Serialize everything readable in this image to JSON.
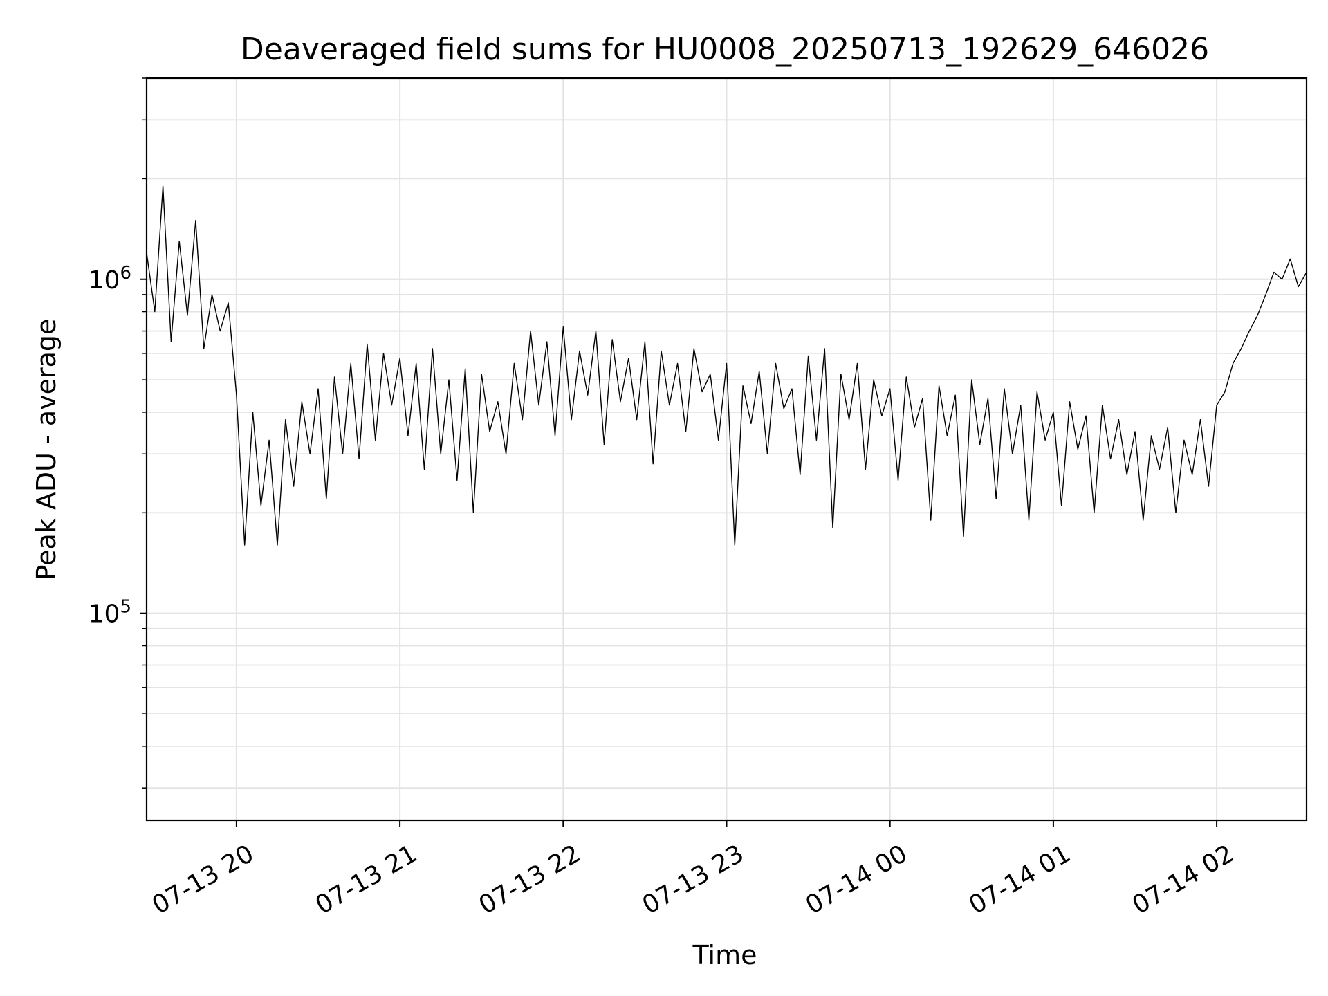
{
  "chart_data": {
    "type": "line",
    "title": "Deaveraged field sums for HU0008_20250713_192629_646026",
    "xlabel": "Time",
    "ylabel": "Peak ADU - average",
    "y_scale": "log",
    "ylim": [
      24000,
      4000000
    ],
    "xlim": [
      "2025-07-13 19:27",
      "2025-07-14 02:33"
    ],
    "grid": true,
    "line_color": "#000000",
    "x_ticks": [
      {
        "value": "2025-07-13 20:00",
        "label": "07-13 20"
      },
      {
        "value": "2025-07-13 21:00",
        "label": "07-13 21"
      },
      {
        "value": "2025-07-13 22:00",
        "label": "07-13 22"
      },
      {
        "value": "2025-07-13 23:00",
        "label": "07-13 23"
      },
      {
        "value": "2025-07-14 00:00",
        "label": "07-14 00"
      },
      {
        "value": "2025-07-14 01:00",
        "label": "07-14 01"
      },
      {
        "value": "2025-07-14 02:00",
        "label": "07-14 02"
      }
    ],
    "y_ticks": [
      {
        "value": 100000,
        "base": "10",
        "exp": "5"
      },
      {
        "value": 1000000,
        "base": "10",
        "exp": "6"
      }
    ],
    "series": [
      {
        "name": "",
        "x": [
          "2025-07-13 19:27",
          "2025-07-13 19:30",
          "2025-07-13 19:33",
          "2025-07-13 19:36",
          "2025-07-13 19:39",
          "2025-07-13 19:42",
          "2025-07-13 19:45",
          "2025-07-13 19:48",
          "2025-07-13 19:51",
          "2025-07-13 19:54",
          "2025-07-13 19:57",
          "2025-07-13 20:00",
          "2025-07-13 20:03",
          "2025-07-13 20:06",
          "2025-07-13 20:09",
          "2025-07-13 20:12",
          "2025-07-13 20:15",
          "2025-07-13 20:18",
          "2025-07-13 20:21",
          "2025-07-13 20:24",
          "2025-07-13 20:27",
          "2025-07-13 20:30",
          "2025-07-13 20:33",
          "2025-07-13 20:36",
          "2025-07-13 20:39",
          "2025-07-13 20:42",
          "2025-07-13 20:45",
          "2025-07-13 20:48",
          "2025-07-13 20:51",
          "2025-07-13 20:54",
          "2025-07-13 20:57",
          "2025-07-13 21:00",
          "2025-07-13 21:03",
          "2025-07-13 21:06",
          "2025-07-13 21:09",
          "2025-07-13 21:12",
          "2025-07-13 21:15",
          "2025-07-13 21:18",
          "2025-07-13 21:21",
          "2025-07-13 21:24",
          "2025-07-13 21:27",
          "2025-07-13 21:30",
          "2025-07-13 21:33",
          "2025-07-13 21:36",
          "2025-07-13 21:39",
          "2025-07-13 21:42",
          "2025-07-13 21:45",
          "2025-07-13 21:48",
          "2025-07-13 21:51",
          "2025-07-13 21:54",
          "2025-07-13 21:57",
          "2025-07-13 22:00",
          "2025-07-13 22:03",
          "2025-07-13 22:06",
          "2025-07-13 22:09",
          "2025-07-13 22:12",
          "2025-07-13 22:15",
          "2025-07-13 22:18",
          "2025-07-13 22:21",
          "2025-07-13 22:24",
          "2025-07-13 22:27",
          "2025-07-13 22:30",
          "2025-07-13 22:33",
          "2025-07-13 22:36",
          "2025-07-13 22:39",
          "2025-07-13 22:42",
          "2025-07-13 22:45",
          "2025-07-13 22:48",
          "2025-07-13 22:51",
          "2025-07-13 22:54",
          "2025-07-13 22:57",
          "2025-07-13 23:00",
          "2025-07-13 23:03",
          "2025-07-13 23:06",
          "2025-07-13 23:09",
          "2025-07-13 23:12",
          "2025-07-13 23:15",
          "2025-07-13 23:18",
          "2025-07-13 23:21",
          "2025-07-13 23:24",
          "2025-07-13 23:27",
          "2025-07-13 23:30",
          "2025-07-13 23:33",
          "2025-07-13 23:36",
          "2025-07-13 23:39",
          "2025-07-13 23:42",
          "2025-07-13 23:45",
          "2025-07-13 23:48",
          "2025-07-13 23:51",
          "2025-07-13 23:54",
          "2025-07-13 23:57",
          "2025-07-14 00:00",
          "2025-07-14 00:03",
          "2025-07-14 00:06",
          "2025-07-14 00:09",
          "2025-07-14 00:12",
          "2025-07-14 00:15",
          "2025-07-14 00:18",
          "2025-07-14 00:21",
          "2025-07-14 00:24",
          "2025-07-14 00:27",
          "2025-07-14 00:30",
          "2025-07-14 00:33",
          "2025-07-14 00:36",
          "2025-07-14 00:39",
          "2025-07-14 00:42",
          "2025-07-14 00:45",
          "2025-07-14 00:48",
          "2025-07-14 00:51",
          "2025-07-14 00:54",
          "2025-07-14 00:57",
          "2025-07-14 01:00",
          "2025-07-14 01:03",
          "2025-07-14 01:06",
          "2025-07-14 01:09",
          "2025-07-14 01:12",
          "2025-07-14 01:15",
          "2025-07-14 01:18",
          "2025-07-14 01:21",
          "2025-07-14 01:24",
          "2025-07-14 01:27",
          "2025-07-14 01:30",
          "2025-07-14 01:33",
          "2025-07-14 01:36",
          "2025-07-14 01:39",
          "2025-07-14 01:42",
          "2025-07-14 01:45",
          "2025-07-14 01:48",
          "2025-07-14 01:51",
          "2025-07-14 01:54",
          "2025-07-14 01:57",
          "2025-07-14 02:00",
          "2025-07-14 02:03",
          "2025-07-14 02:06",
          "2025-07-14 02:09",
          "2025-07-14 02:12",
          "2025-07-14 02:15",
          "2025-07-14 02:18",
          "2025-07-14 02:21",
          "2025-07-14 02:24",
          "2025-07-14 02:27",
          "2025-07-14 02:30",
          "2025-07-14 02:33"
        ],
        "y": [
          1200000,
          800000,
          1900000,
          650000,
          1300000,
          780000,
          1500000,
          620000,
          900000,
          700000,
          850000,
          450000,
          160000,
          400000,
          210000,
          330000,
          160000,
          380000,
          240000,
          430000,
          300000,
          470000,
          220000,
          510000,
          300000,
          560000,
          290000,
          640000,
          330000,
          600000,
          420000,
          580000,
          340000,
          560000,
          270000,
          620000,
          300000,
          500000,
          250000,
          540000,
          200000,
          520000,
          350000,
          430000,
          300000,
          560000,
          380000,
          700000,
          420000,
          650000,
          340000,
          720000,
          380000,
          610000,
          450000,
          700000,
          320000,
          660000,
          430000,
          580000,
          380000,
          650000,
          280000,
          610000,
          420000,
          560000,
          350000,
          620000,
          460000,
          520000,
          330000,
          560000,
          160000,
          480000,
          370000,
          530000,
          300000,
          560000,
          410000,
          470000,
          260000,
          590000,
          330000,
          620000,
          180000,
          520000,
          380000,
          560000,
          270000,
          500000,
          390000,
          470000,
          250000,
          510000,
          360000,
          440000,
          190000,
          480000,
          340000,
          450000,
          170000,
          500000,
          320000,
          440000,
          220000,
          470000,
          300000,
          420000,
          190000,
          460000,
          330000,
          400000,
          210000,
          430000,
          310000,
          390000,
          200000,
          420000,
          290000,
          380000,
          260000,
          350000,
          190000,
          340000,
          270000,
          360000,
          200000,
          330000,
          260000,
          380000,
          240000,
          420000,
          460000,
          560000,
          620000,
          700000,
          780000,
          900000,
          1050000,
          1000000,
          1150000,
          950000,
          1050000
        ]
      }
    ]
  }
}
